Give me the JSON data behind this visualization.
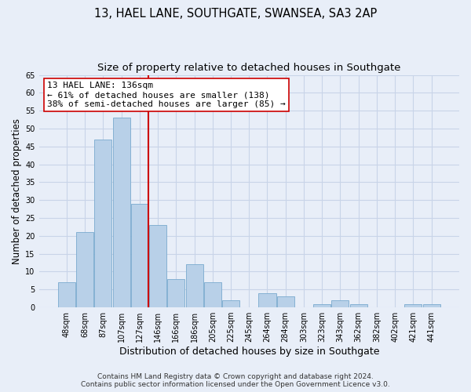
{
  "title": "13, HAEL LANE, SOUTHGATE, SWANSEA, SA3 2AP",
  "subtitle": "Size of property relative to detached houses in Southgate",
  "xlabel": "Distribution of detached houses by size in Southgate",
  "ylabel": "Number of detached properties",
  "bar_labels": [
    "48sqm",
    "68sqm",
    "87sqm",
    "107sqm",
    "127sqm",
    "146sqm",
    "166sqm",
    "186sqm",
    "205sqm",
    "225sqm",
    "245sqm",
    "264sqm",
    "284sqm",
    "303sqm",
    "323sqm",
    "343sqm",
    "362sqm",
    "382sqm",
    "402sqm",
    "421sqm",
    "441sqm"
  ],
  "bar_values": [
    7,
    21,
    47,
    53,
    29,
    23,
    8,
    12,
    7,
    2,
    0,
    4,
    3,
    0,
    1,
    2,
    1,
    0,
    0,
    1,
    1
  ],
  "bar_color": "#b8d0e8",
  "bar_edge_color": "#7aaace",
  "vline_x_index": 4.5,
  "vline_color": "#cc0000",
  "annotation_line1": "13 HAEL LANE: 136sqm",
  "annotation_line2": "← 61% of detached houses are smaller (138)",
  "annotation_line3": "38% of semi-detached houses are larger (85) →",
  "annotation_box_color": "#ffffff",
  "annotation_box_edge": "#cc0000",
  "ylim": [
    0,
    65
  ],
  "yticks": [
    0,
    5,
    10,
    15,
    20,
    25,
    30,
    35,
    40,
    45,
    50,
    55,
    60,
    65
  ],
  "footer_line1": "Contains HM Land Registry data © Crown copyright and database right 2024.",
  "footer_line2": "Contains public sector information licensed under the Open Government Licence v3.0.",
  "background_color": "#e8eef8",
  "grid_color": "#c8d4e8",
  "title_fontsize": 10.5,
  "subtitle_fontsize": 9.5,
  "xlabel_fontsize": 9,
  "ylabel_fontsize": 8.5,
  "tick_fontsize": 7,
  "annotation_fontsize": 8,
  "footer_fontsize": 6.5
}
